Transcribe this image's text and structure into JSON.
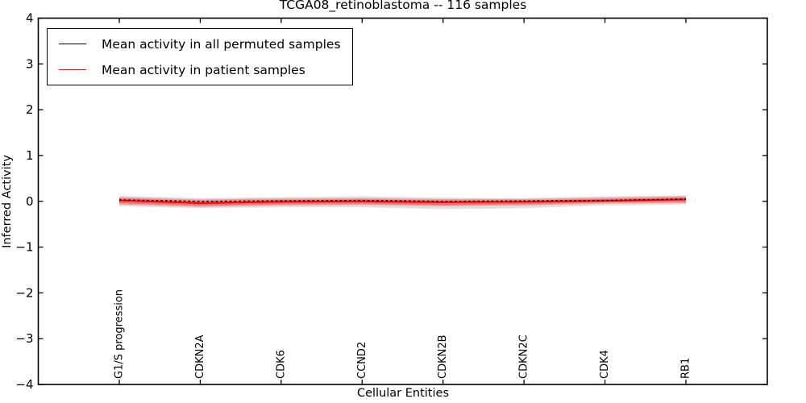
{
  "figure": {
    "kind": "matplotlib-style line plot"
  },
  "chart_data": {
    "type": "line",
    "title": "TCGA08_retinoblastoma -- 116 samples",
    "xlabel": "Cellular Entities",
    "ylabel": "Inferred Activity",
    "ylim": [
      -4,
      4
    ],
    "yticks": [
      4,
      3,
      2,
      1,
      0,
      -1,
      -2,
      -3,
      -4
    ],
    "grid": false,
    "legend_position": "upper left",
    "categories": [
      "G1/S progression",
      "CDKN2A",
      "CDK6",
      "CCND2",
      "CDKN2B",
      "CDKN2C",
      "CDK4",
      "RB1"
    ],
    "series": [
      {
        "name": "Mean activity in all permuted samples",
        "color": "#000000",
        "style": "solid-with-dash-overlay",
        "values": [
          0.03,
          0.0,
          0.01,
          0.02,
          0.0,
          0.01,
          0.02,
          0.05
        ]
      },
      {
        "name": "Mean activity in patient samples",
        "color": "#ff0000",
        "style": "solid",
        "values": [
          0.02,
          -0.04,
          -0.01,
          0.0,
          -0.02,
          -0.01,
          0.01,
          0.04
        ]
      }
    ],
    "bands": [
      {
        "name": "permuted-samples-spread",
        "color": "#999999",
        "opacity": 0.3,
        "upper": [
          0.12,
          0.07,
          0.09,
          0.11,
          0.08,
          0.07,
          0.11,
          0.13
        ],
        "lower": [
          -0.11,
          -0.15,
          -0.13,
          -0.13,
          -0.17,
          -0.15,
          -0.09,
          -0.07
        ]
      },
      {
        "name": "patient-samples-spread-outer",
        "color": "#ff0000",
        "opacity": 0.28,
        "upper": [
          0.09,
          0.04,
          0.06,
          0.07,
          0.05,
          0.05,
          0.08,
          0.11
        ],
        "lower": [
          -0.07,
          -0.12,
          -0.09,
          -0.08,
          -0.11,
          -0.09,
          -0.05,
          -0.04
        ]
      },
      {
        "name": "patient-samples-spread-inner",
        "color": "#ff0000",
        "opacity": 0.32,
        "upper": [
          0.06,
          0.01,
          0.03,
          0.04,
          0.02,
          0.02,
          0.05,
          0.08
        ],
        "lower": [
          -0.04,
          -0.09,
          -0.06,
          -0.05,
          -0.08,
          -0.06,
          -0.02,
          -0.01
        ]
      }
    ]
  }
}
